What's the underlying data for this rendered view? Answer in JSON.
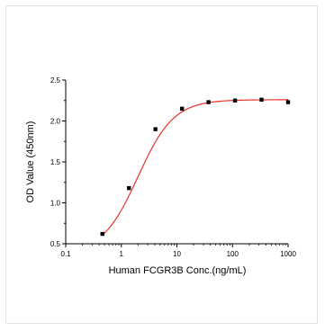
{
  "chart_data": {
    "type": "scatter",
    "title": "",
    "xlabel": "Human FCGR3B Conc.(ng/mL)",
    "ylabel": "OD Value (450nm)",
    "x_scale": "log",
    "xlim": [
      0.1,
      1000
    ],
    "ylim": [
      0.5,
      2.5
    ],
    "x_ticks": [
      0.1,
      1,
      10,
      100,
      1000
    ],
    "x_tick_labels": [
      "0.1",
      "1",
      "10",
      "100",
      "1000"
    ],
    "y_ticks": [
      0.5,
      1.0,
      1.5,
      2.0,
      2.5
    ],
    "y_tick_labels": [
      "0.5",
      "1.0",
      "1.5",
      "2.0",
      "2.5"
    ],
    "grid": false,
    "legend": "none",
    "series": [
      {
        "x": [
          0.457,
          1.372,
          4.115,
          12.35,
          37.04,
          111.1,
          333.3,
          1000
        ],
        "y": [
          0.62,
          1.18,
          1.9,
          2.15,
          2.23,
          2.25,
          2.26,
          2.23
        ],
        "marker": "square",
        "color": "#000000"
      }
    ],
    "fit_curve": {
      "type": "4PL",
      "bottom": 0.38,
      "top": 2.26,
      "ec50": 2.0,
      "hill": 1.35,
      "color": "#e8322b"
    }
  }
}
